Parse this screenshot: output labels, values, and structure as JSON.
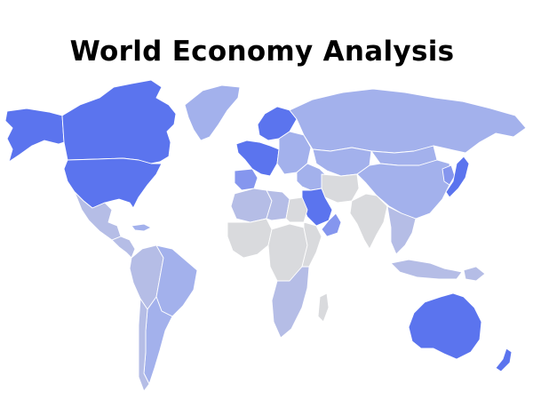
{
  "title": "World Economy Analysis",
  "palette": {
    "low": "#d9dadd",
    "mid_low": "#b5bde6",
    "mid": "#a3b1ec",
    "mid_high": "#8596ee",
    "high": "#5b74ee",
    "ocean": "#ffffff",
    "border": "#ffffff"
  },
  "regions": [
    {
      "name": "Canada",
      "level": "high"
    },
    {
      "name": "Alaska",
      "level": "high"
    },
    {
      "name": "United States",
      "level": "high"
    },
    {
      "name": "Greenland",
      "level": "mid"
    },
    {
      "name": "Mexico",
      "level": "mid_low"
    },
    {
      "name": "Central America",
      "level": "mid_low"
    },
    {
      "name": "Caribbean",
      "level": "mid"
    },
    {
      "name": "Brazil",
      "level": "mid"
    },
    {
      "name": "South America (West)",
      "level": "mid_low"
    },
    {
      "name": "Argentina",
      "level": "mid"
    },
    {
      "name": "Chile",
      "level": "mid_low"
    },
    {
      "name": "Northern Europe",
      "level": "high"
    },
    {
      "name": "Western Europe",
      "level": "high"
    },
    {
      "name": "Iberia",
      "level": "mid_high"
    },
    {
      "name": "Eastern Europe",
      "level": "mid"
    },
    {
      "name": "Russia",
      "level": "mid"
    },
    {
      "name": "Central Asia",
      "level": "mid"
    },
    {
      "name": "Middle East",
      "level": "mid"
    },
    {
      "name": "Saudi Arabia",
      "level": "high"
    },
    {
      "name": "Gulf States",
      "level": "mid_high"
    },
    {
      "name": "Iran",
      "level": "low"
    },
    {
      "name": "South Asia",
      "level": "low"
    },
    {
      "name": "Mongolia",
      "level": "mid"
    },
    {
      "name": "China",
      "level": "mid"
    },
    {
      "name": "Korea",
      "level": "mid_high"
    },
    {
      "name": "Japan",
      "level": "high"
    },
    {
      "name": "Southeast Asia",
      "level": "mid_low"
    },
    {
      "name": "Indonesia",
      "level": "mid_low"
    },
    {
      "name": "Papua New Guinea",
      "level": "mid_low"
    },
    {
      "name": "North Africa",
      "level": "mid_low"
    },
    {
      "name": "Libya",
      "level": "mid_low"
    },
    {
      "name": "Egypt",
      "level": "low"
    },
    {
      "name": "West Africa",
      "level": "low"
    },
    {
      "name": "Central Africa",
      "level": "low"
    },
    {
      "name": "East Africa",
      "level": "low"
    },
    {
      "name": "Southern Africa",
      "level": "mid_low"
    },
    {
      "name": "Madagascar",
      "level": "low"
    },
    {
      "name": "Australia",
      "level": "high"
    },
    {
      "name": "New Zealand",
      "level": "high"
    }
  ]
}
